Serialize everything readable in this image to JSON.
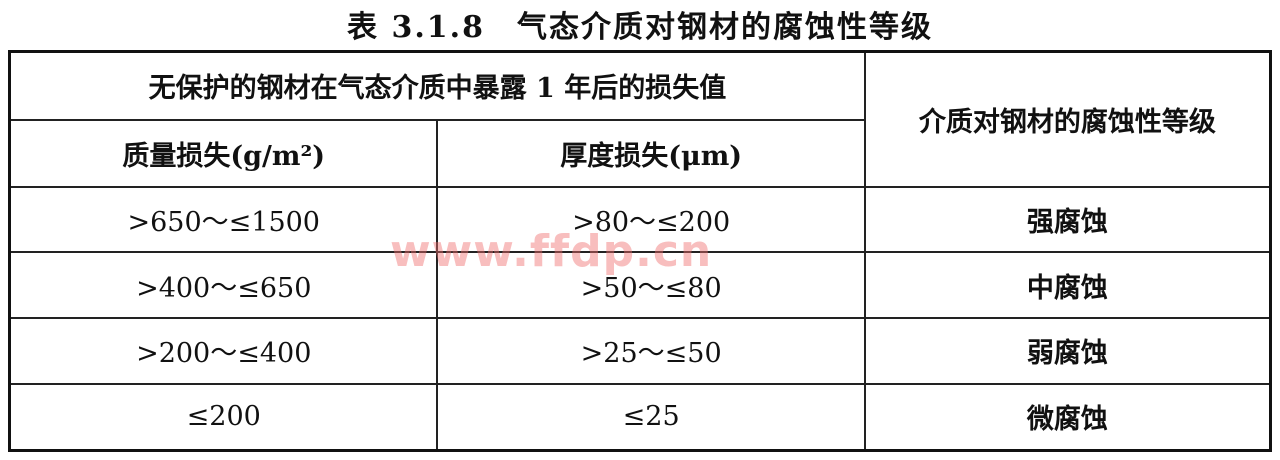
{
  "title": "表 3.1.8　气态介质对钢材的腐蚀性等级",
  "header": {
    "group": "无保护的钢材在气态介质中暴露 1 年后的损失值",
    "grade": "介质对钢材的腐蚀性等级",
    "mass_loss": "质量损失(g/m²)",
    "thickness_loss": "厚度损失(μm)"
  },
  "rows": [
    {
      "mass": ">650～≤1500",
      "thickness": ">80～≤200",
      "grade": "强腐蚀"
    },
    {
      "mass": ">400～≤650",
      "thickness": ">50～≤80",
      "grade": "中腐蚀"
    },
    {
      "mass": ">200～≤400",
      "thickness": ">25～≤50",
      "grade": "弱腐蚀"
    },
    {
      "mass": "≤200",
      "thickness": "≤25",
      "grade": "微腐蚀"
    }
  ],
  "watermark": "www.ffdp.cn",
  "watermark_color": "#f06e6e"
}
